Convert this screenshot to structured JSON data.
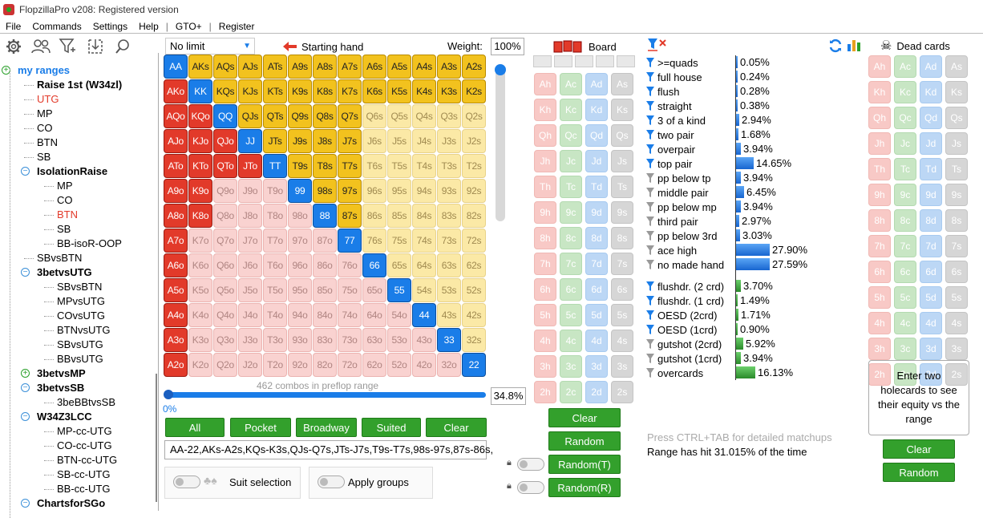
{
  "app": {
    "title": "FlopzillaPro v208: Registered version"
  },
  "menu": [
    "File",
    "Commands",
    "Settings",
    "Help",
    "GTO+",
    "Register"
  ],
  "tree": [
    {
      "label": "my ranges",
      "level": 0,
      "box": "plus",
      "style": "blue"
    },
    {
      "label": "Raise 1st (W34zl)",
      "level": 1,
      "box": "",
      "style": "bold"
    },
    {
      "label": "UTG",
      "level": 1,
      "box": "",
      "style": "red"
    },
    {
      "label": "MP",
      "level": 1,
      "box": "",
      "style": ""
    },
    {
      "label": "CO",
      "level": 1,
      "box": "",
      "style": ""
    },
    {
      "label": "BTN",
      "level": 1,
      "box": "",
      "style": ""
    },
    {
      "label": "SB",
      "level": 1,
      "box": "",
      "style": ""
    },
    {
      "label": "IsolationRaise",
      "level": 1,
      "box": "minus",
      "style": "bold"
    },
    {
      "label": "MP",
      "level": 2,
      "box": "",
      "style": ""
    },
    {
      "label": "CO",
      "level": 2,
      "box": "",
      "style": ""
    },
    {
      "label": "BTN",
      "level": 2,
      "box": "",
      "style": "red"
    },
    {
      "label": "SB",
      "level": 2,
      "box": "",
      "style": ""
    },
    {
      "label": "BB-isoR-OOP",
      "level": 2,
      "box": "",
      "style": ""
    },
    {
      "label": "SBvsBTN",
      "level": 1,
      "box": "",
      "style": ""
    },
    {
      "label": "3betvsUTG",
      "level": 1,
      "box": "minus",
      "style": "bold"
    },
    {
      "label": "SBvsBTN",
      "level": 2,
      "box": "",
      "style": ""
    },
    {
      "label": "MPvsUTG",
      "level": 2,
      "box": "",
      "style": ""
    },
    {
      "label": "COvsUTG",
      "level": 2,
      "box": "",
      "style": ""
    },
    {
      "label": "BTNvsUTG",
      "level": 2,
      "box": "",
      "style": ""
    },
    {
      "label": "SBvsUTG",
      "level": 2,
      "box": "",
      "style": ""
    },
    {
      "label": "BBvsUTG",
      "level": 2,
      "box": "",
      "style": ""
    },
    {
      "label": "3betvsMP",
      "level": 1,
      "box": "plus",
      "style": "bold"
    },
    {
      "label": "3betvsSB",
      "level": 1,
      "box": "minus",
      "style": "bold"
    },
    {
      "label": "3beBBtvsSB",
      "level": 2,
      "box": "",
      "style": ""
    },
    {
      "label": "W34Z3LCC",
      "level": 1,
      "box": "minus",
      "style": "bold"
    },
    {
      "label": "MP-cc-UTG",
      "level": 2,
      "box": "",
      "style": ""
    },
    {
      "label": "CO-cc-UTG",
      "level": 2,
      "box": "",
      "style": ""
    },
    {
      "label": "BTN-cc-UTG",
      "level": 2,
      "box": "",
      "style": ""
    },
    {
      "label": "SB-cc-UTG",
      "level": 2,
      "box": "",
      "style": ""
    },
    {
      "label": "BB-cc-UTG",
      "level": 2,
      "box": "",
      "style": ""
    },
    {
      "label": "ChartsforSGo",
      "level": 1,
      "box": "minus",
      "style": "bold"
    }
  ],
  "range_panel": {
    "game": "No limit",
    "starting_hand": "Starting hand",
    "weight_label": "Weight:",
    "weight_value": "100%",
    "combos_text": "462 combos in preflop range",
    "slider_left": "0%",
    "percent": "34.8%",
    "buttons": [
      "All",
      "Pocket",
      "Broadway",
      "Suited",
      "Clear"
    ],
    "range_text": "AA-22,AKs-A2s,KQs-K3s,QJs-Q7s,JTs-J7s,T9s-T7s,98s-97s,87s-86s,",
    "suit_selection": "Suit selection",
    "apply_groups": "Apply groups"
  },
  "ranks": [
    "A",
    "K",
    "Q",
    "J",
    "T",
    "9",
    "8",
    "7",
    "6",
    "5",
    "4",
    "3",
    "2"
  ],
  "selected_suited_min": [
    12,
    12,
    7,
    7,
    7,
    7,
    7,
    6,
    6,
    5,
    4,
    3,
    2
  ],
  "selected_offsuit_min": [
    12,
    9,
    8,
    8,
    8,
    9,
    9,
    9,
    9,
    9,
    9,
    9,
    9
  ],
  "board": {
    "title": "Board",
    "suits": [
      "h",
      "c",
      "d",
      "s"
    ],
    "buttons": [
      "Clear",
      "Random",
      "Random(T)",
      "Random(R)"
    ]
  },
  "stats": {
    "made": [
      {
        "label": ">=quads",
        "value": "0.05%",
        "pct": 0.05,
        "filter": "blue"
      },
      {
        "label": "full house",
        "value": "0.24%",
        "pct": 0.24,
        "filter": "blue"
      },
      {
        "label": "flush",
        "value": "0.28%",
        "pct": 0.28,
        "filter": "blue"
      },
      {
        "label": "straight",
        "value": "0.38%",
        "pct": 0.38,
        "filter": "blue"
      },
      {
        "label": "3 of a kind",
        "value": "2.94%",
        "pct": 2.94,
        "filter": "blue"
      },
      {
        "label": "two pair",
        "value": "1.68%",
        "pct": 1.68,
        "filter": "blue"
      },
      {
        "label": "overpair",
        "value": "3.94%",
        "pct": 3.94,
        "filter": "blue"
      },
      {
        "label": "top pair",
        "value": "14.65%",
        "pct": 14.65,
        "filter": "blue"
      },
      {
        "label": "pp below tp",
        "value": "3.94%",
        "pct": 3.94,
        "filter": "grey"
      },
      {
        "label": "middle pair",
        "value": "6.45%",
        "pct": 6.45,
        "filter": "grey"
      },
      {
        "label": "pp below mp",
        "value": "3.94%",
        "pct": 3.94,
        "filter": "grey"
      },
      {
        "label": "third pair",
        "value": "2.97%",
        "pct": 2.97,
        "filter": "grey"
      },
      {
        "label": "pp below 3rd",
        "value": "3.03%",
        "pct": 3.03,
        "filter": "grey"
      },
      {
        "label": "ace high",
        "value": "27.90%",
        "pct": 27.9,
        "filter": "grey"
      },
      {
        "label": "no made hand",
        "value": "27.59%",
        "pct": 27.59,
        "filter": "grey"
      }
    ],
    "draws": [
      {
        "label": "flushdr. (2 crd)",
        "value": "3.70%",
        "pct": 3.7,
        "filter": "blue"
      },
      {
        "label": "flushdr. (1 crd)",
        "value": "1.49%",
        "pct": 1.49,
        "filter": "blue"
      },
      {
        "label": "OESD (2crd)",
        "value": "1.71%",
        "pct": 1.71,
        "filter": "blue"
      },
      {
        "label": "OESD (1crd)",
        "value": "0.90%",
        "pct": 0.9,
        "filter": "blue"
      },
      {
        "label": "gutshot (2crd)",
        "value": "5.92%",
        "pct": 5.92,
        "filter": "grey"
      },
      {
        "label": "gutshot (1crd)",
        "value": "3.94%",
        "pct": 3.94,
        "filter": "grey"
      },
      {
        "label": "overcards",
        "value": "16.13%",
        "pct": 16.13,
        "filter": "grey"
      }
    ],
    "hint": "Press CTRL+TAB for detailed matchups",
    "range_hit": "Range has hit 31.015% of the time"
  },
  "dead": {
    "title": "Dead cards",
    "prompt": "Enter two holecards to see their equity vs the range",
    "buttons": [
      "Clear",
      "Random"
    ]
  },
  "colors": {
    "pair": "#1a7de8",
    "suited": "#f2c21e",
    "offsuit": "#e23a2a",
    "green_button": "#33a02c"
  }
}
